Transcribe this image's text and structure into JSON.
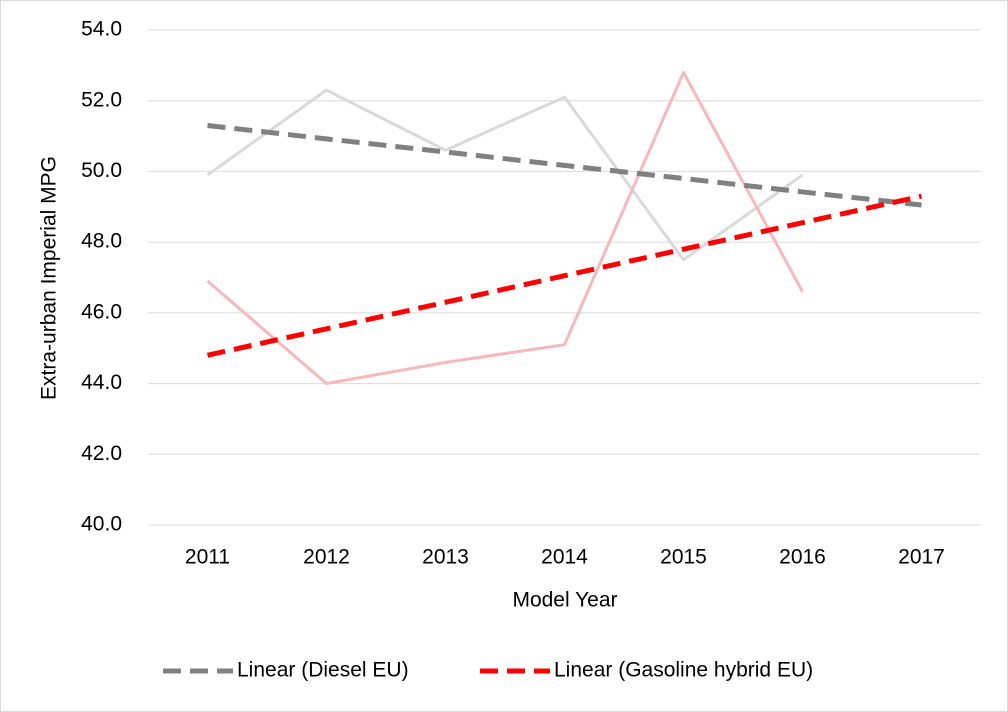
{
  "chart_data": {
    "type": "line",
    "x_label": "Model Year",
    "y_label": "Extra-urban Imperial MPG",
    "categories": [
      "2011",
      "2012",
      "2013",
      "2014",
      "2015",
      "2016",
      "2017"
    ],
    "series": [
      {
        "color": "#d9d9d9",
        "dashed": false,
        "values": [
          49.9,
          52.3,
          50.6,
          52.1,
          47.5,
          49.9,
          null
        ]
      },
      {
        "color": "#f6b8b8",
        "dashed": false,
        "values": [
          46.9,
          44.0,
          44.6,
          45.1,
          52.8,
          46.6,
          null
        ]
      },
      {
        "name": "Linear (Diesel EU)",
        "color": "#808080",
        "dashed": true,
        "values": [
          51.3,
          50.92,
          50.55,
          50.17,
          49.8,
          49.42,
          49.05
        ]
      },
      {
        "name": "Linear (Gasoline hybrid EU)",
        "color": "#ff0000",
        "dashed": true,
        "values": [
          44.8,
          45.55,
          46.3,
          47.05,
          47.8,
          48.55,
          49.3
        ]
      }
    ],
    "ylim": [
      40,
      54
    ],
    "yticks": [
      {
        "value": 40,
        "label": "40.0"
      },
      {
        "value": 42,
        "label": "42.0"
      },
      {
        "value": 44,
        "label": "44.0"
      },
      {
        "value": 46,
        "label": "46.0"
      },
      {
        "value": 48,
        "label": "48.0"
      },
      {
        "value": 50,
        "label": "50.0"
      },
      {
        "value": 52,
        "label": "52.0"
      },
      {
        "value": 54,
        "label": "54.0"
      }
    ],
    "grid": true,
    "legend": "bottom"
  }
}
